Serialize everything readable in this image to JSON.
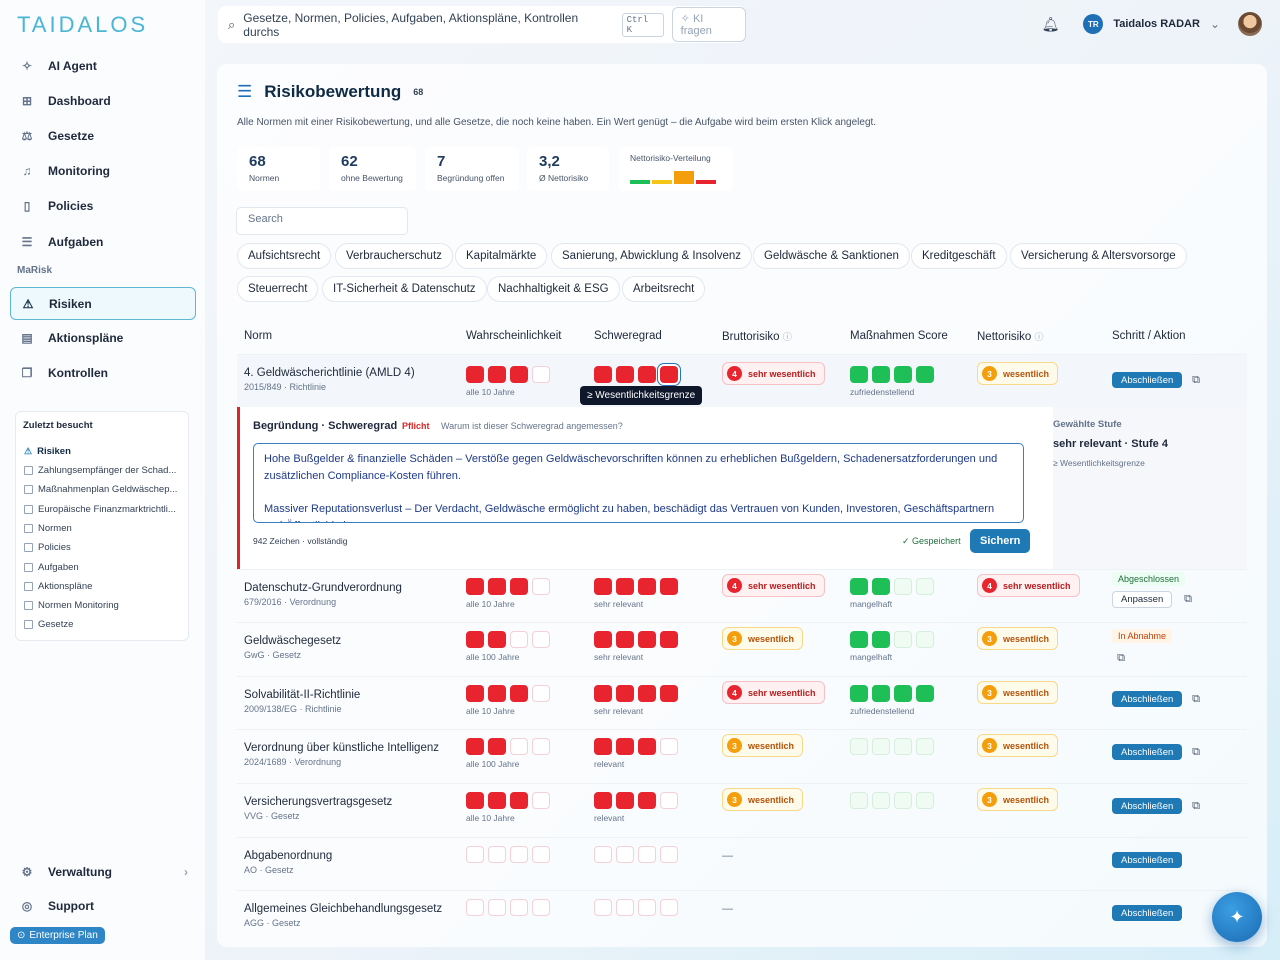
{
  "sidebar": {
    "logo": "TAIDALOS",
    "nav": [
      {
        "label": "AI Agent",
        "icon": "sparkle-icon"
      },
      {
        "label": "Dashboard",
        "icon": "grid-icon"
      },
      {
        "label": "Gesetze",
        "icon": "scales-icon"
      },
      {
        "label": "Monitoring",
        "icon": "bell-icon"
      },
      {
        "label": "Policies",
        "icon": "document-icon"
      },
      {
        "label": "Aufgaben",
        "icon": "list-icon"
      }
    ],
    "section": "MaRisk",
    "nav2": [
      {
        "label": "Risiken",
        "icon": "warning-icon"
      },
      {
        "label": "Aktionspläne",
        "icon": "clipboard-icon"
      },
      {
        "label": "Kontrollen",
        "icon": "copy-icon"
      }
    ],
    "recent": {
      "title": "Zuletzt besucht",
      "items": [
        "Risiken",
        "Zahlungsempfänger der Schad...",
        "Maßnahmenplan Geldwäschep...",
        "Europäische Finanzmarktrichtli...",
        "Normen",
        "Policies",
        "Aufgaben",
        "Aktionspläne",
        "Normen Monitoring",
        "Gesetze"
      ]
    },
    "bottom": [
      {
        "label": "Verwaltung",
        "icon": "gear-icon"
      },
      {
        "label": "Support",
        "icon": "lifebuoy-icon"
      }
    ],
    "plan": "Enterprise Plan"
  },
  "topbar": {
    "search_placeholder": "Gesetze, Normen, Policies, Aufgaben, Aktionspläne, Kontrollen durchs",
    "shortcut": "Ctrl K",
    "ai_button": "KI fragen",
    "user_initials": "TR",
    "org": "Taidalos RADAR"
  },
  "page": {
    "title": "Risikobewertung",
    "count": "68",
    "subtitle": "Alle Normen mit einer Risikobewertung, und alle Gesetze, die noch keine haben. Ein Wert genügt – die Aufgabe wird beim ersten Klick angelegt.",
    "stats": [
      {
        "value": "68",
        "label": "Normen"
      },
      {
        "value": "62",
        "label": "ohne Bewertung"
      },
      {
        "value": "7",
        "label": "Begründung offen"
      },
      {
        "value": "3,2",
        "label": "Ø Nettorisiko"
      }
    ],
    "dist_label": "Nettorisiko-Verteilung",
    "dist_colors": [
      "#1fbf57",
      "#f5c518",
      "#f59e0b",
      "#e8242f"
    ],
    "search_placeholder": "Search",
    "chips": [
      "Aufsichtsrecht",
      "Verbraucherschutz",
      "Kapitalmärkte",
      "Sanierung, Abwicklung & Insolvenz",
      "Geldwäsche & Sanktionen",
      "Kreditgeschäft",
      "Versicherung & Altersvorsorge",
      "Steuerrecht",
      "IT-Sicherheit & Datenschutz",
      "Nachhaltigkeit & ESG",
      "Arbeitsrecht"
    ]
  },
  "table": {
    "headers": [
      "Norm",
      "Wahrscheinlichkeit",
      "Schweregrad",
      "Bruttorisiko",
      "Maßnahmen Score",
      "Nettorisiko",
      "Schritt / Aktion"
    ],
    "rows": [
      {
        "name": "4. Geldwäscherichtlinie (AMLD 4)",
        "sub": "2015/849 · Richtlinie",
        "prob": 3,
        "prob_label": "alle 10 Jahre",
        "sev": 4,
        "sev_label": "sehr relevant",
        "gross": {
          "n": "4",
          "t": "sehr wesentlich",
          "c": "red"
        },
        "meas": 4,
        "meas_label": "zufriedenstellend",
        "net": {
          "n": "3",
          "t": "wesentlich",
          "c": "or"
        },
        "action": "Abschließen"
      },
      {
        "name": "Datenschutz-Grundverordnung",
        "sub": "679/2016 · Verordnung",
        "prob": 3,
        "prob_label": "alle 10 Jahre",
        "sev": 4,
        "sev_label": "sehr relevant",
        "gross": {
          "n": "4",
          "t": "sehr wesentlich",
          "c": "red"
        },
        "meas": 2,
        "meas_label": "mangelhaft",
        "net": {
          "n": "4",
          "t": "sehr wesentlich",
          "c": "red"
        },
        "status": "Abgeschlossen",
        "action2": "Anpassen"
      },
      {
        "name": "Geldwäschegesetz",
        "sub": "GwG · Gesetz",
        "prob": 2,
        "prob_label": "alle 100 Jahre",
        "sev": 4,
        "sev_label": "sehr relevant",
        "gross": {
          "n": "3",
          "t": "wesentlich",
          "c": "or"
        },
        "meas": 2,
        "meas_label": "mangelhaft",
        "net": {
          "n": "3",
          "t": "wesentlich",
          "c": "or"
        },
        "status2": "In Abnahme"
      },
      {
        "name": "Solvabilität-II-Richtlinie",
        "sub": "2009/138/EG · Richtlinie",
        "prob": 3,
        "prob_label": "alle 10 Jahre",
        "sev": 4,
        "sev_label": "sehr relevant",
        "gross": {
          "n": "4",
          "t": "sehr wesentlich",
          "c": "red"
        },
        "meas": 4,
        "meas_label": "zufriedenstellend",
        "net": {
          "n": "3",
          "t": "wesentlich",
          "c": "or"
        },
        "action": "Abschließen"
      },
      {
        "name": "Verordnung über künstliche Intelligenz",
        "sub": "2024/1689 · Verordnung",
        "prob": 2,
        "prob_label": "alle 100 Jahre",
        "sev": 3,
        "sev_label": "relevant",
        "gross": {
          "n": "3",
          "t": "wesentlich",
          "c": "or"
        },
        "meas": 0,
        "meas_label": "",
        "net": {
          "n": "3",
          "t": "wesentlich",
          "c": "or"
        },
        "action": "Abschließen"
      },
      {
        "name": "Versicherungsvertragsgesetz",
        "sub": "VVG · Gesetz",
        "prob": 3,
        "prob_label": "alle 10 Jahre",
        "sev": 3,
        "sev_label": "relevant",
        "gross": {
          "n": "3",
          "t": "wesentlich",
          "c": "or"
        },
        "meas": 0,
        "meas_label": "",
        "net": {
          "n": "3",
          "t": "wesentlich",
          "c": "or"
        },
        "action": "Abschließen"
      },
      {
        "name": "Abgabenordnung",
        "sub": "AO · Gesetz",
        "prob": 0,
        "prob_label": "",
        "sev": 0,
        "sev_label": "",
        "gross": null,
        "action": "Abschließen"
      },
      {
        "name": "Allgemeines Gleichbehandlungsgesetz",
        "sub": "AGG · Gesetz",
        "prob": 0,
        "prob_label": "",
        "sev": 0,
        "sev_label": "",
        "gross": null,
        "action": "Abschließen"
      }
    ],
    "empty_mark": "—",
    "tooltip": "≥ Wesentlichkeitsgrenze",
    "expanded": {
      "title": "Begründung · Schweregrad",
      "required": "Pflicht",
      "question": "Warum ist dieser Schweregrad angemessen?",
      "text1": "Hohe Bußgelder & finanzielle Schäden – Verstöße gegen Geldwäschevorschriften können zu erheblichen Bußgeldern, Schadenersatzforderungen und zusätzlichen Compliance-Kosten führen.",
      "text2": "Massiver Reputationsverlust – Der Verdacht, Geldwäsche ermöglicht zu haben, beschädigt das Vertrauen von Kunden, Investoren, Geschäftspartnern und Öffentlichkeit.",
      "chars": "942 Zeichen · vollständig",
      "saved": "Gespeichert",
      "save_button": "Sichern",
      "side_title": "Gewählte Stufe",
      "side_value": "sehr relevant · Stufe 4",
      "side_note": "≥ Wesentlichkeitsgrenze"
    }
  }
}
